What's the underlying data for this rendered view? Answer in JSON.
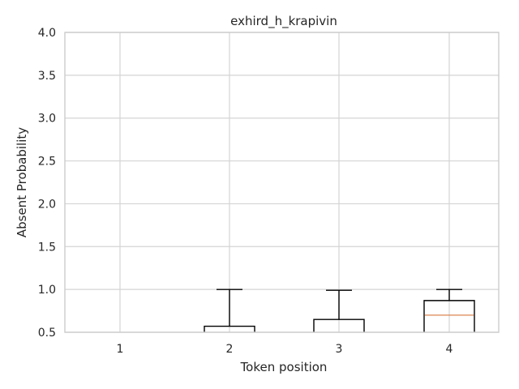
{
  "chart_data": {
    "type": "box",
    "title": "exhird_h_krapivin",
    "xlabel": "Token position",
    "ylabel": "Absent Probability",
    "categories": [
      "1",
      "2",
      "3",
      "4"
    ],
    "ylim": [
      0.5,
      4.0
    ],
    "yticks": [
      "0.5",
      "1.0",
      "1.5",
      "2.0",
      "2.5",
      "3.0",
      "3.5",
      "4.0"
    ],
    "grid": true,
    "boxes": [
      null,
      {
        "q3": 0.57,
        "whisker_high": 1.0
      },
      {
        "q3": 0.65,
        "whisker_high": 0.99
      },
      {
        "median": 0.7,
        "q3": 0.87,
        "whisker_high": 1.0
      }
    ],
    "colors": {
      "box": "#000000",
      "median": "#dd8452",
      "grid": "#d4d4d4"
    }
  }
}
